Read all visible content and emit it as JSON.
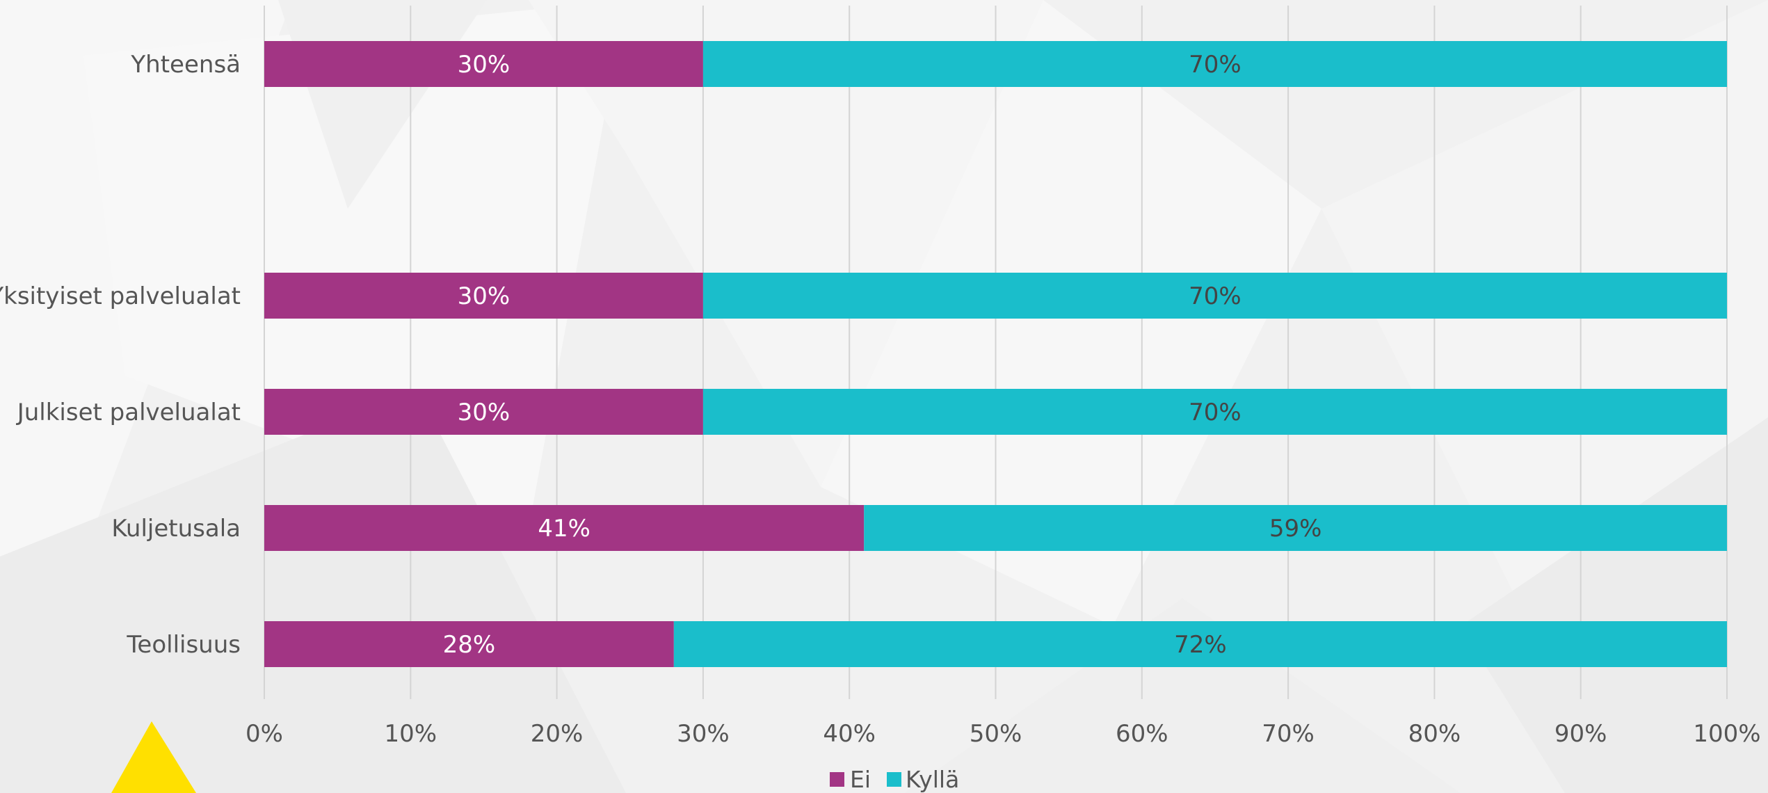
{
  "chart_data": {
    "type": "bar",
    "orientation": "horizontal",
    "stacked": "percent",
    "categories": [
      "Yhteensä",
      "Yksityiset palvelualat",
      "Julkiset palvelualat",
      "Kuljetusala",
      "Teollisuus"
    ],
    "series": [
      {
        "name": "Ei",
        "values": [
          30,
          30,
          30,
          41,
          28
        ],
        "labels": [
          "30%",
          "30%",
          "30%",
          "41%",
          "28%"
        ],
        "color": "#a23584",
        "label_color": "#ffffff"
      },
      {
        "name": "Kyllä",
        "values": [
          70,
          70,
          70,
          59,
          72
        ],
        "labels": [
          "70%",
          "70%",
          "70%",
          "59%",
          "72%"
        ],
        "color": "#1abecb",
        "label_color": "#444444"
      }
    ],
    "x_ticks": [
      "0%",
      "10%",
      "20%",
      "30%",
      "40%",
      "50%",
      "60%",
      "70%",
      "80%",
      "90%",
      "100%"
    ],
    "xlim": [
      0,
      100
    ],
    "grid": true,
    "legend_position": "bottom-center",
    "title": "",
    "xlabel": "",
    "ylabel": ""
  },
  "colors": {
    "gridline": "#d4d4d4",
    "accent_triangle": "#ffe000"
  }
}
